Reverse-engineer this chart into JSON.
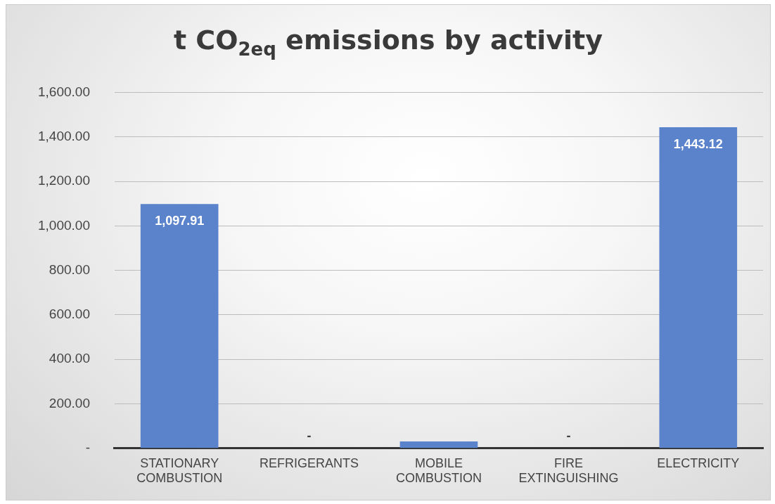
{
  "chart_data": {
    "type": "bar",
    "title": "t CO$_{2eq}$ emissions by activity",
    "categories": [
      "STATIONARY COMBUSTION",
      "REFRIGERANTS",
      "MOBILE COMBUSTION",
      "FIRE EXTINGUISHING",
      "ELECTRICITY"
    ],
    "values": [
      1097.91,
      0,
      31,
      0,
      1443.12
    ],
    "color": "#5b83cc",
    "value_labels": [
      "1,097.91",
      "-",
      null,
      "-",
      "1,443.12"
    ],
    "ylim": [
      0,
      1600
    ],
    "yticks": [
      {
        "value": 0,
        "label": "-"
      },
      {
        "value": 200,
        "label": "200.00"
      },
      {
        "value": 400,
        "label": "400.00"
      },
      {
        "value": 600,
        "label": "600.00"
      },
      {
        "value": 800,
        "label": "800.00"
      },
      {
        "value": 1000,
        "label": "1,000.00"
      },
      {
        "value": 1200,
        "label": "1,200.00"
      },
      {
        "value": 1400,
        "label": "1,400.00"
      },
      {
        "value": 1600,
        "label": "1,600.00"
      }
    ],
    "grid": "y",
    "legend": false
  }
}
